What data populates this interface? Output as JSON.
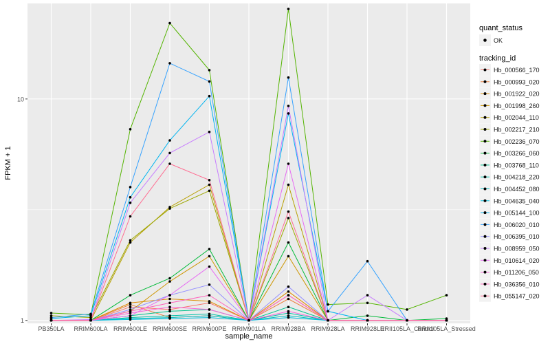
{
  "chart_data": {
    "type": "line",
    "xlabel": "sample_name",
    "ylabel": "FPKM + 1",
    "y_scale": "log10",
    "ylim": [
      0.97,
      27
    ],
    "y_ticks": [
      {
        "value": 1,
        "label": "1"
      },
      {
        "value": 10,
        "label": "10"
      }
    ],
    "categories": [
      "PB350LA",
      "RRIM600LA",
      "RRIM600LE",
      "RRIM600SE",
      "RRIM600PE",
      "RRIM901LA",
      "RRIM928BA",
      "RRIM928LA",
      "RRIM928LE",
      "RRII105LA_Control",
      "RRII105LA_Stressed"
    ],
    "grid": true,
    "legend_position": "right",
    "point_legend": {
      "title": "quant_status",
      "label": "OK"
    },
    "legend_title": "tracking_id",
    "series": [
      {
        "name": "Hb_000566_170",
        "color": "#f8766d",
        "values": [
          1,
          1,
          1.15,
          1.12,
          1.2,
          1,
          1.3,
          1,
          1,
          1,
          1
        ]
      },
      {
        "name": "Hb_000993_020",
        "color": "#ed813e",
        "values": [
          1,
          1,
          1.18,
          1.03,
          1.05,
          1,
          1.25,
          1,
          1,
          1,
          1
        ]
      },
      {
        "name": "Hb_001922_020",
        "color": "#de8c00",
        "values": [
          1,
          1,
          1.2,
          1.25,
          1.22,
          1,
          1.35,
          1,
          1,
          1,
          1
        ]
      },
      {
        "name": "Hb_001998_260",
        "color": "#cd9600",
        "values": [
          1,
          1,
          1.1,
          1.5,
          1.95,
          1,
          1.95,
          1,
          1,
          1,
          1
        ]
      },
      {
        "name": "Hb_002044_110",
        "color": "#b79f00",
        "values": [
          1,
          1,
          2.25,
          3.25,
          4.1,
          1,
          4.1,
          1,
          1,
          1,
          1
        ]
      },
      {
        "name": "Hb_002217_210",
        "color": "#9da700",
        "values": [
          1.05,
          1.03,
          2.3,
          3.2,
          3.85,
          1,
          2.9,
          1,
          1,
          1,
          1
        ]
      },
      {
        "name": "Hb_002236_070",
        "color": "#53b400",
        "values": [
          1.08,
          1.06,
          7.3,
          22,
          13.5,
          1,
          25.5,
          1.18,
          1.2,
          1.12,
          1.3
        ]
      },
      {
        "name": "Hb_003266_060",
        "color": "#00ba38",
        "values": [
          1,
          1,
          1.3,
          1.55,
          2.1,
          1,
          2.25,
          1,
          1.05,
          1,
          1.02
        ]
      },
      {
        "name": "Hb_003768_110",
        "color": "#00c08b",
        "values": [
          1,
          1,
          1.05,
          1.1,
          1.12,
          1,
          1.15,
          1,
          1,
          1,
          1
        ]
      },
      {
        "name": "Hb_004218_220",
        "color": "#00c1a9",
        "values": [
          1,
          1,
          1.03,
          1.05,
          1.07,
          1,
          1.08,
          1,
          1,
          1,
          1
        ]
      },
      {
        "name": "Hb_004452_080",
        "color": "#00bfc4",
        "values": [
          1,
          1,
          1.02,
          1.03,
          1.05,
          1,
          1.05,
          1,
          1,
          1,
          1
        ]
      },
      {
        "name": "Hb_004635_040",
        "color": "#00bbdc",
        "values": [
          1,
          1,
          1.01,
          1.02,
          1.03,
          1,
          1.03,
          1,
          1,
          1,
          1
        ]
      },
      {
        "name": "Hb_005144_100",
        "color": "#00b4f0",
        "values": [
          1.02,
          1.05,
          3.6,
          6.5,
          10.3,
          1,
          8.6,
          1.1,
          1,
          1,
          1
        ]
      },
      {
        "name": "Hb_006020_010",
        "color": "#35a2ff",
        "values": [
          1.03,
          1.07,
          4,
          14.5,
          12,
          1,
          12.5,
          1.1,
          1.85,
          1,
          1
        ]
      },
      {
        "name": "Hb_006395_010",
        "color": "#9590ff",
        "values": [
          1,
          1,
          1.12,
          1.3,
          1.45,
          1,
          1.42,
          1,
          1,
          1,
          1
        ]
      },
      {
        "name": "Hb_008959_050",
        "color": "#c77cff",
        "values": [
          1,
          1.01,
          3.4,
          5.7,
          7.1,
          1,
          9.3,
          1,
          1.3,
          1,
          1
        ]
      },
      {
        "name": "Hb_010614_020",
        "color": "#e76bf3",
        "values": [
          1,
          1,
          1.05,
          1.3,
          1.75,
          1,
          5.1,
          1,
          1,
          1,
          1
        ]
      },
      {
        "name": "Hb_011206_050",
        "color": "#fa62db",
        "values": [
          1,
          1,
          1.08,
          1.15,
          1.12,
          1,
          1.1,
          1,
          1,
          1,
          1
        ]
      },
      {
        "name": "Hb_036356_010",
        "color": "#ff62bc",
        "values": [
          1,
          1,
          1.1,
          1.2,
          1.3,
          1,
          1.3,
          1,
          1,
          1,
          1
        ]
      },
      {
        "name": "Hb_055147_020",
        "color": "#ff6c91",
        "values": [
          1,
          1,
          2.95,
          5.1,
          4.3,
          1,
          3.1,
          1,
          1,
          1,
          1
        ]
      }
    ]
  }
}
